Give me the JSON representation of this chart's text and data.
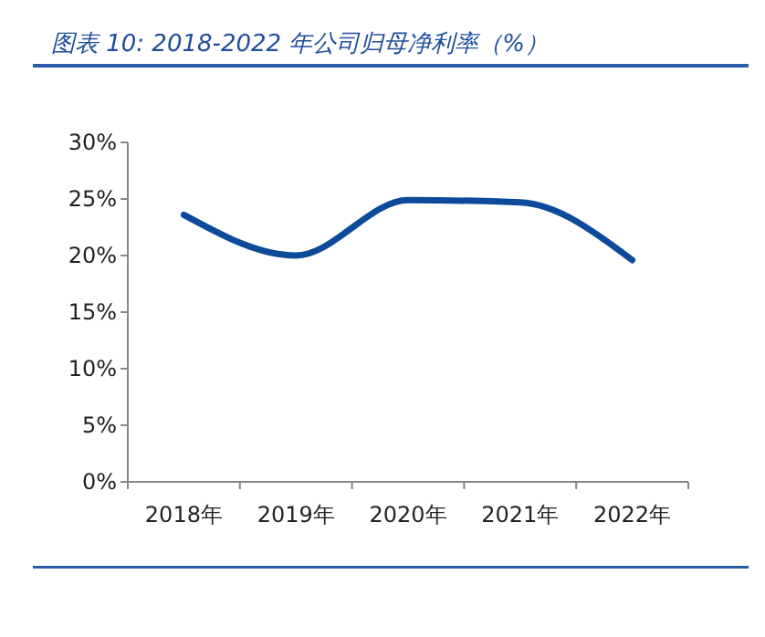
{
  "chart_data": {
    "type": "line",
    "title": "图表 10:  2018-2022 年公司归母净利率（%）",
    "categories": [
      "2018年",
      "2019年",
      "2020年",
      "2021年",
      "2022年"
    ],
    "series": [
      {
        "color": "#0d4a9a",
        "values": [
          23.6,
          20.0,
          24.9,
          24.7,
          19.6
        ]
      }
    ],
    "ylim": [
      0,
      30
    ],
    "yticks": [
      {
        "value": 0,
        "label": "0%"
      },
      {
        "value": 5,
        "label": "5%"
      },
      {
        "value": 10,
        "label": "10%"
      },
      {
        "value": 15,
        "label": "15%"
      },
      {
        "value": 20,
        "label": "20%"
      },
      {
        "value": 25,
        "label": "25%"
      },
      {
        "value": 30,
        "label": "30%"
      }
    ],
    "grid": false,
    "marker": "none",
    "line_style": "solid"
  }
}
